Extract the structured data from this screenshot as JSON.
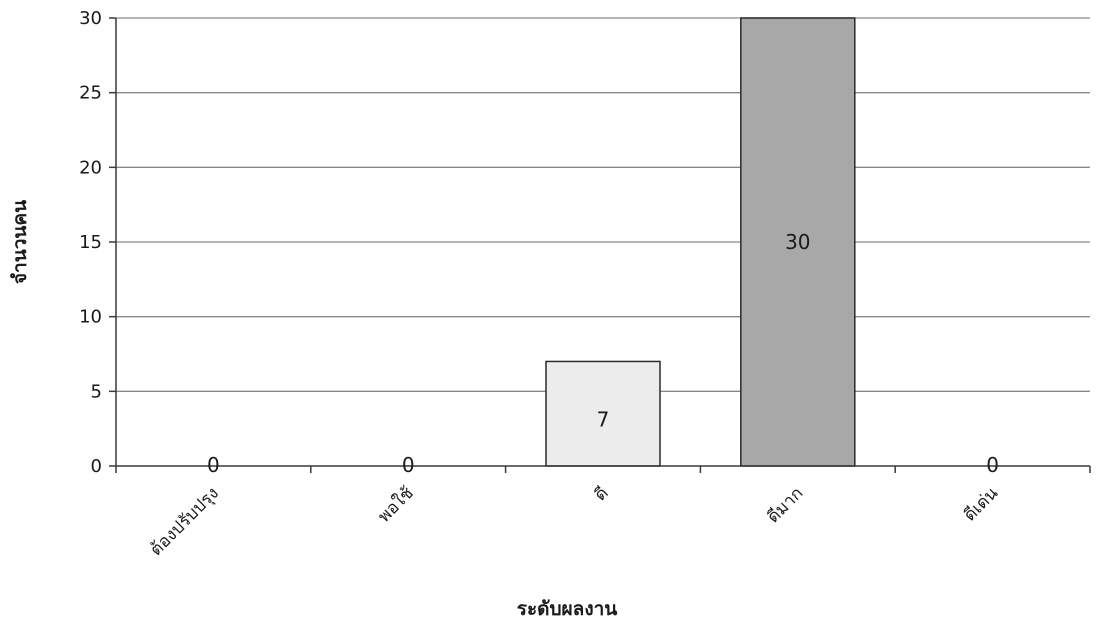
{
  "chart_data": {
    "type": "bar",
    "title": "",
    "xlabel": "ระดับผลงาน",
    "ylabel": "จำนวนคน",
    "categories": [
      "ต้องปรับปรุง",
      "พอใช้",
      "ดี",
      "ดีมาก",
      "ดีเด่น"
    ],
    "values": [
      0,
      0,
      7,
      30,
      0
    ],
    "data_labels": [
      "0",
      "0",
      "7",
      "30",
      "0"
    ],
    "ylim": [
      0,
      30
    ],
    "yticks": [
      0,
      5,
      10,
      15,
      20,
      25,
      30
    ],
    "ytick_labels": [
      "0",
      "5",
      "10",
      "15",
      "20",
      "25",
      "30"
    ],
    "grid": true,
    "legend": "none",
    "colors": {
      "grid": "#8a8a8a",
      "axis": "#3a3a3a",
      "bar_dee": "#ececec",
      "bar_deemak": "#a8a8a8",
      "bar_stroke": "#2a2a2a"
    },
    "bar_colors": [
      "#ececec",
      "#ececec",
      "#ececec",
      "#a8a8a8",
      "#ececec"
    ]
  }
}
